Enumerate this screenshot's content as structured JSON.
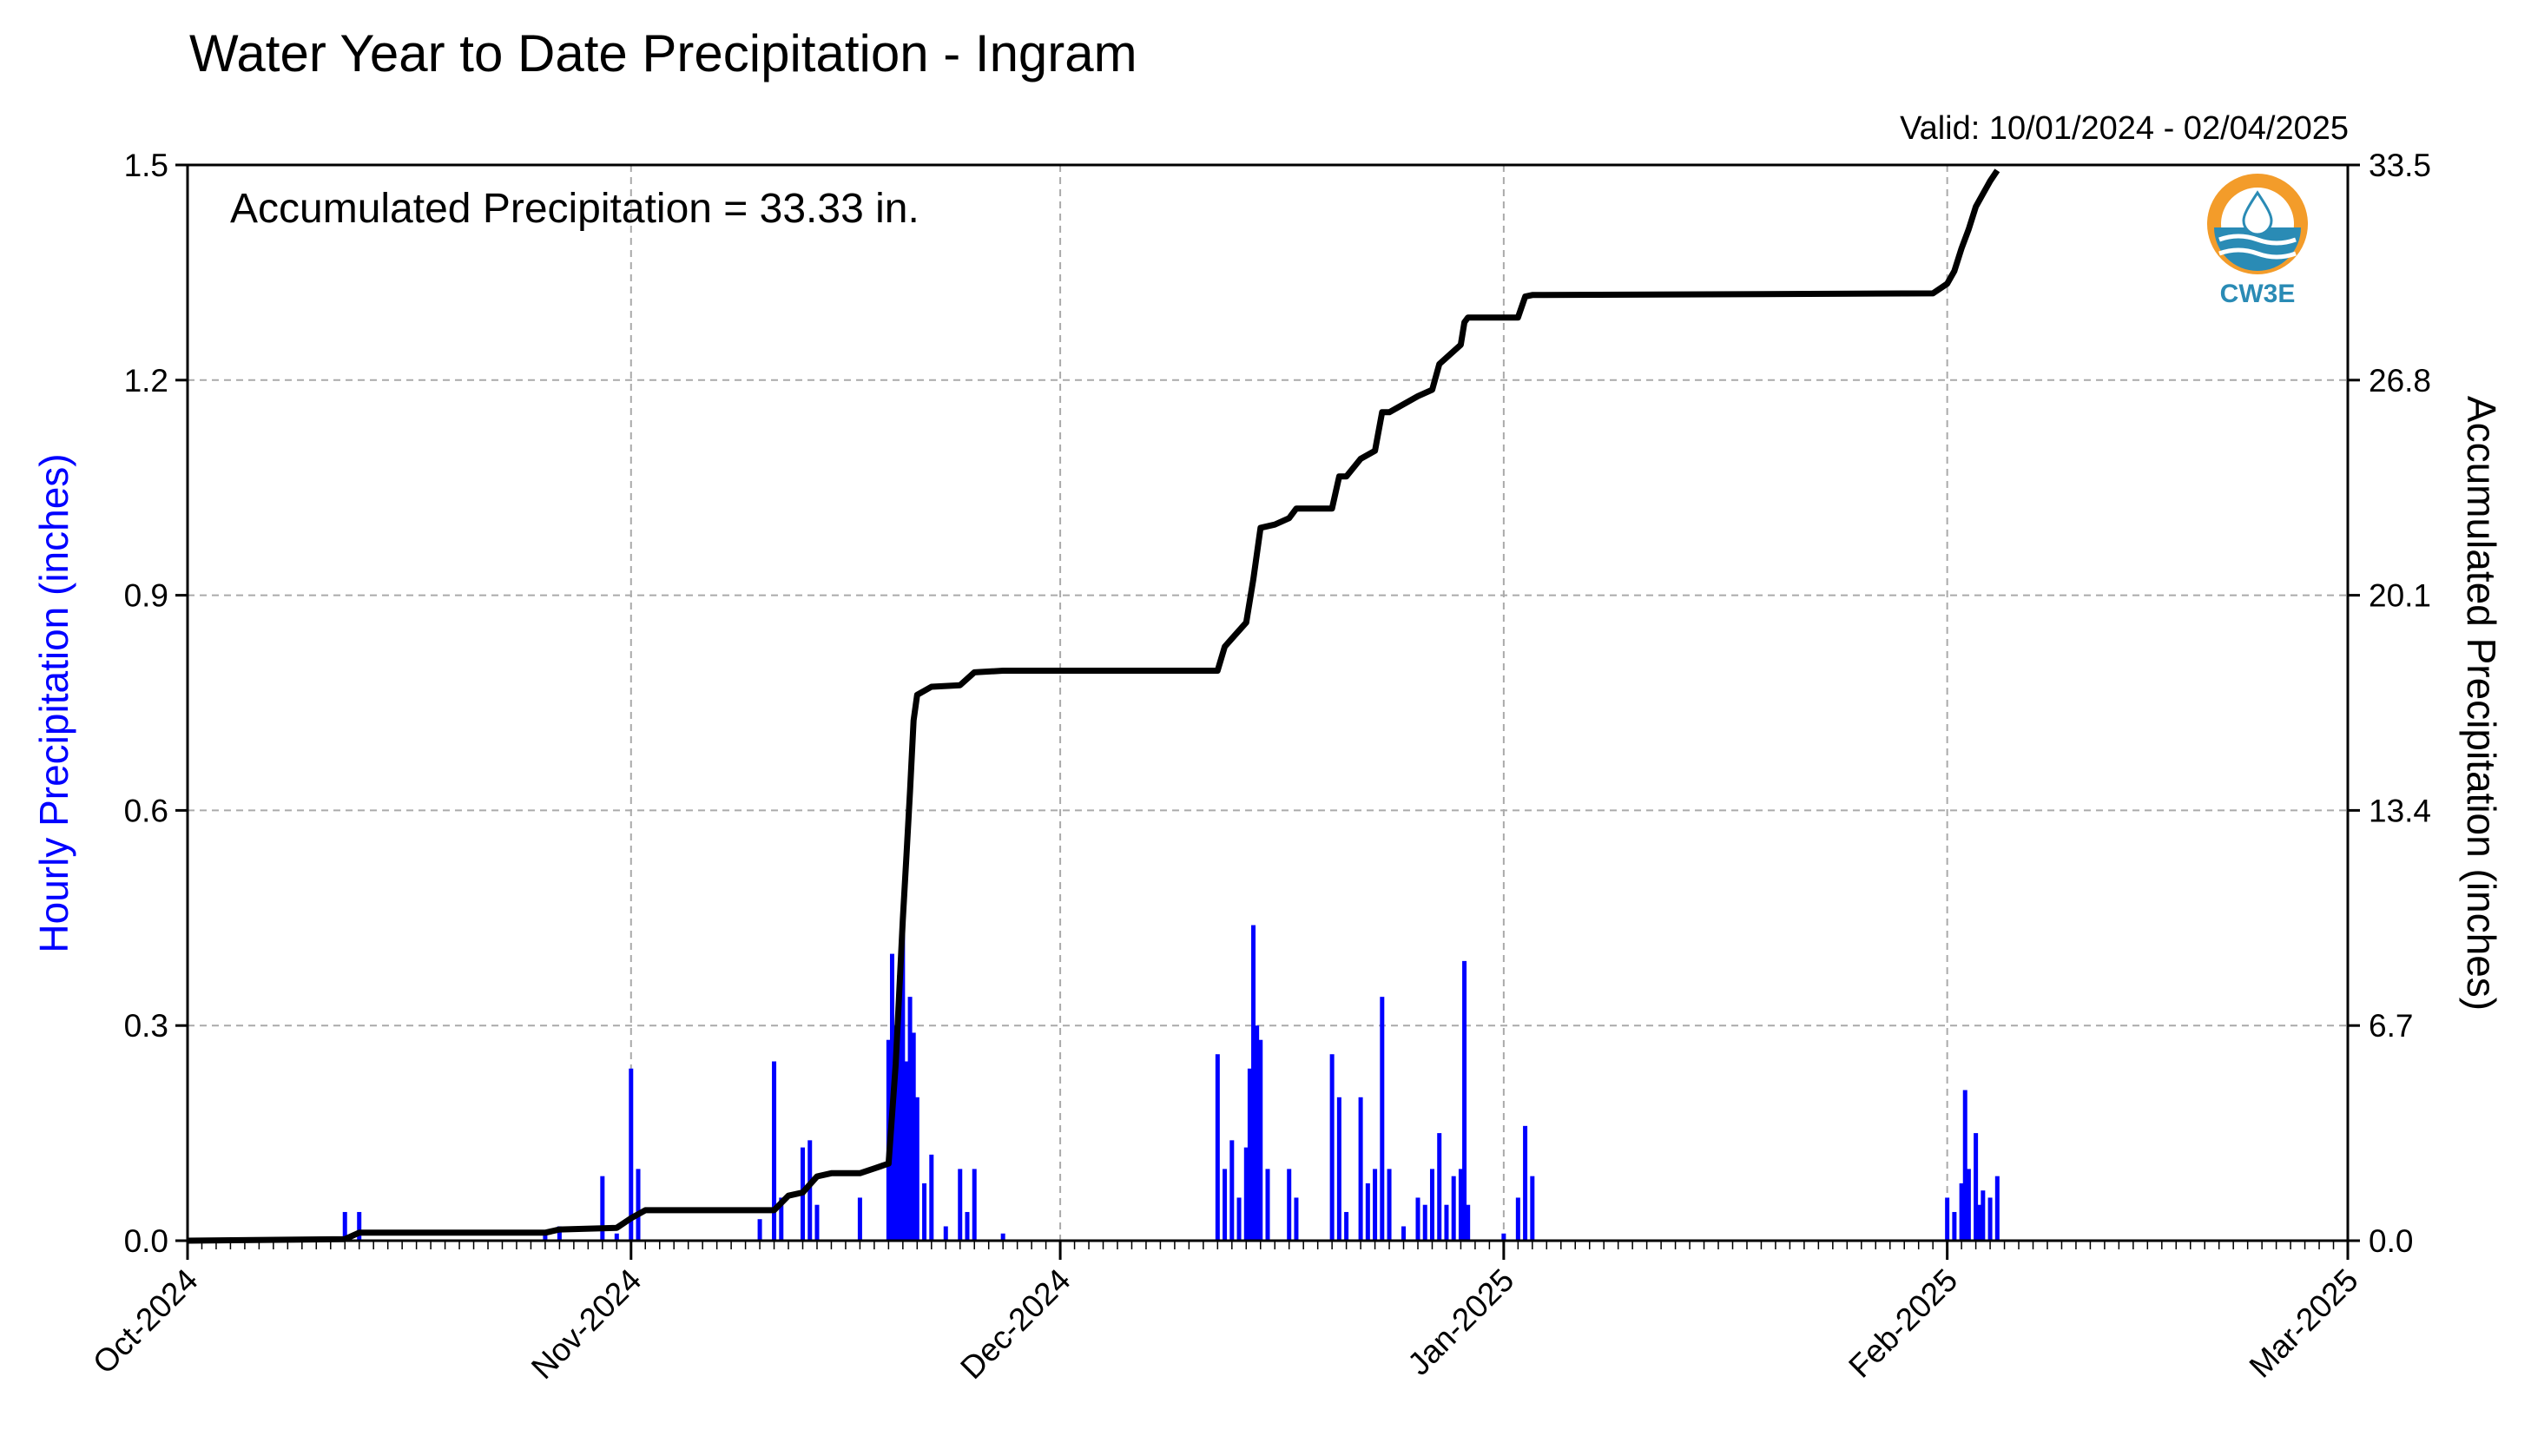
{
  "chart_data": {
    "type": "bar+line",
    "title": "Water Year to Date Precipitation - Ingram",
    "subtitle": "Valid: 10/01/2024 - 02/04/2025",
    "annotation": "Accumulated Precipitation = 33.33 in.",
    "ylabel_left": "Hourly Precipitation (inches)",
    "ylabel_right": "Accumulated Precipitation (inches)",
    "xlim": [
      "2024-10-01",
      "2025-03-01"
    ],
    "ylim_left": [
      0,
      1.5
    ],
    "ylim_right": [
      0,
      33.5
    ],
    "x_ticks": [
      "Oct-2024",
      "Nov-2024",
      "Dec-2024",
      "Jan-2025",
      "Feb-2025",
      "Mar-2025"
    ],
    "left_ticks": [
      "0.0",
      "0.3",
      "0.6",
      "0.9",
      "1.2",
      "1.5"
    ],
    "right_ticks": [
      "0.0",
      "6.7",
      "13.4",
      "20.1",
      "26.8",
      "33.5"
    ],
    "grid": true,
    "colors": {
      "hourly": "#0000ff",
      "accumulated": "#000000",
      "left_axis_label": "#0000ff",
      "logo_orange": "#f39c2a",
      "logo_blue": "#2a8bb5"
    },
    "logo_text": "CW3E",
    "series": [
      {
        "name": "Hourly Precipitation",
        "axis": "left",
        "style": "bar",
        "points": [
          [
            "2024-10-12",
            0.04
          ],
          [
            "2024-10-13",
            0.04
          ],
          [
            "2024-10-26",
            0.01
          ],
          [
            "2024-10-27",
            0.02
          ],
          [
            "2024-10-30",
            0.09
          ],
          [
            "2024-10-31",
            0.01
          ],
          [
            "2024-11-01",
            0.24
          ],
          [
            "2024-11-01T12",
            0.1
          ],
          [
            "2024-11-10",
            0.03
          ],
          [
            "2024-11-11",
            0.25
          ],
          [
            "2024-11-11T12",
            0.06
          ],
          [
            "2024-11-13",
            0.13
          ],
          [
            "2024-11-13T12",
            0.14
          ],
          [
            "2024-11-14",
            0.05
          ],
          [
            "2024-11-17",
            0.06
          ],
          [
            "2024-11-19",
            0.28
          ],
          [
            "2024-11-19T06",
            0.4
          ],
          [
            "2024-11-19T12",
            0.3
          ],
          [
            "2024-11-19T18",
            0.37
          ],
          [
            "2024-11-20",
            0.46
          ],
          [
            "2024-11-20T06",
            0.25
          ],
          [
            "2024-11-20T12",
            0.34
          ],
          [
            "2024-11-20T18",
            0.29
          ],
          [
            "2024-11-21",
            0.2
          ],
          [
            "2024-11-21T12",
            0.08
          ],
          [
            "2024-11-22",
            0.12
          ],
          [
            "2024-11-23",
            0.02
          ],
          [
            "2024-11-24",
            0.1
          ],
          [
            "2024-11-24T12",
            0.04
          ],
          [
            "2024-11-25",
            0.1
          ],
          [
            "2024-11-27",
            0.01
          ],
          [
            "2024-12-12",
            0.26
          ],
          [
            "2024-12-12T12",
            0.1
          ],
          [
            "2024-12-13",
            0.14
          ],
          [
            "2024-12-13T12",
            0.06
          ],
          [
            "2024-12-14",
            0.13
          ],
          [
            "2024-12-14T06",
            0.24
          ],
          [
            "2024-12-14T12",
            0.44
          ],
          [
            "2024-12-14T18",
            0.3
          ],
          [
            "2024-12-15",
            0.28
          ],
          [
            "2024-12-15T12",
            0.1
          ],
          [
            "2024-12-17",
            0.1
          ],
          [
            "2024-12-17T12",
            0.06
          ],
          [
            "2024-12-20",
            0.26
          ],
          [
            "2024-12-20T12",
            0.2
          ],
          [
            "2024-12-21",
            0.04
          ],
          [
            "2024-12-22",
            0.2
          ],
          [
            "2024-12-22T12",
            0.08
          ],
          [
            "2024-12-23",
            0.1
          ],
          [
            "2024-12-23T12",
            0.34
          ],
          [
            "2024-12-24",
            0.1
          ],
          [
            "2024-12-25",
            0.02
          ],
          [
            "2024-12-26",
            0.06
          ],
          [
            "2024-12-26T12",
            0.05
          ],
          [
            "2024-12-27",
            0.1
          ],
          [
            "2024-12-27T12",
            0.15
          ],
          [
            "2024-12-28",
            0.05
          ],
          [
            "2024-12-28T12",
            0.09
          ],
          [
            "2024-12-29",
            0.1
          ],
          [
            "2024-12-29T06",
            0.39
          ],
          [
            "2024-12-29T12",
            0.05
          ],
          [
            "2025-01-01",
            0.01
          ],
          [
            "2025-01-02",
            0.06
          ],
          [
            "2025-01-02T12",
            0.16
          ],
          [
            "2025-01-03",
            0.09
          ],
          [
            "2025-02-01",
            0.06
          ],
          [
            "2025-02-01T12",
            0.04
          ],
          [
            "2025-02-02",
            0.08
          ],
          [
            "2025-02-02T06",
            0.21
          ],
          [
            "2025-02-02T12",
            0.1
          ],
          [
            "2025-02-03",
            0.15
          ],
          [
            "2025-02-03T06",
            0.05
          ],
          [
            "2025-02-03T12",
            0.07
          ],
          [
            "2025-02-04",
            0.06
          ],
          [
            "2025-02-04T12",
            0.09
          ]
        ]
      },
      {
        "name": "Accumulated Precipitation",
        "axis": "right",
        "style": "line",
        "points": [
          [
            "2024-10-01",
            0.0
          ],
          [
            "2024-10-12",
            0.05
          ],
          [
            "2024-10-13",
            0.25
          ],
          [
            "2024-10-26",
            0.25
          ],
          [
            "2024-10-27",
            0.35
          ],
          [
            "2024-10-31",
            0.4
          ],
          [
            "2024-11-01",
            0.7
          ],
          [
            "2024-11-02",
            0.95
          ],
          [
            "2024-11-11",
            0.95
          ],
          [
            "2024-11-12",
            1.4
          ],
          [
            "2024-11-13",
            1.5
          ],
          [
            "2024-11-14",
            2.0
          ],
          [
            "2024-11-15",
            2.1
          ],
          [
            "2024-11-17",
            2.1
          ],
          [
            "2024-11-18",
            2.25
          ],
          [
            "2024-11-19",
            2.4
          ],
          [
            "2024-11-19T12",
            5.5
          ],
          [
            "2024-11-20",
            10.0
          ],
          [
            "2024-11-20T06",
            12.0
          ],
          [
            "2024-11-20T12",
            14.0
          ],
          [
            "2024-11-20T18",
            16.2
          ],
          [
            "2024-11-21",
            17.0
          ],
          [
            "2024-11-22",
            17.25
          ],
          [
            "2024-11-24",
            17.3
          ],
          [
            "2024-11-25",
            17.7
          ],
          [
            "2024-11-27",
            17.75
          ],
          [
            "2024-12-12",
            17.75
          ],
          [
            "2024-12-12T12",
            18.5
          ],
          [
            "2024-12-13",
            18.75
          ],
          [
            "2024-12-14",
            19.25
          ],
          [
            "2024-12-14T12",
            20.6
          ],
          [
            "2024-12-15",
            22.2
          ],
          [
            "2024-12-16",
            22.3
          ],
          [
            "2024-12-17",
            22.5
          ],
          [
            "2024-12-17T12",
            22.8
          ],
          [
            "2024-12-20",
            22.8
          ],
          [
            "2024-12-20T12",
            23.8
          ],
          [
            "2024-12-21",
            23.8
          ],
          [
            "2024-12-22",
            24.35
          ],
          [
            "2024-12-23",
            24.6
          ],
          [
            "2024-12-23T12",
            25.8
          ],
          [
            "2024-12-24",
            25.8
          ],
          [
            "2024-12-26",
            26.3
          ],
          [
            "2024-12-27",
            26.5
          ],
          [
            "2024-12-27T12",
            27.3
          ],
          [
            "2024-12-28",
            27.5
          ],
          [
            "2024-12-29",
            27.9
          ],
          [
            "2024-12-29T06",
            28.6
          ],
          [
            "2024-12-29T12",
            28.75
          ],
          [
            "2025-01-02",
            28.75
          ],
          [
            "2025-01-02T12",
            29.4
          ],
          [
            "2025-01-03",
            29.45
          ],
          [
            "2025-01-31",
            29.5
          ],
          [
            "2025-02-01",
            29.8
          ],
          [
            "2025-02-01T12",
            30.2
          ],
          [
            "2025-02-02",
            30.9
          ],
          [
            "2025-02-02T12",
            31.5
          ],
          [
            "2025-02-03",
            32.2
          ],
          [
            "2025-02-03T12",
            32.6
          ],
          [
            "2025-02-04",
            33.0
          ],
          [
            "2025-02-04T12",
            33.33
          ]
        ]
      }
    ]
  }
}
